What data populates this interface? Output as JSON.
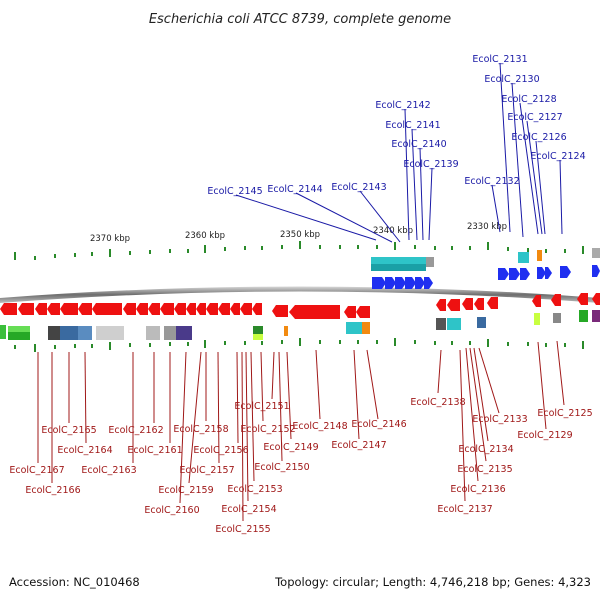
{
  "title": "Escherichia coli ATCC 8739, complete genome",
  "footer": {
    "accession": "Accession: NC_010468",
    "topology": "Topology: circular; Length: 4,746,218 bp; Genes: 4,323"
  },
  "ticks": [
    "2370 kbp",
    "2360 kbp",
    "2350 kbp",
    "2340 kbp",
    "2330 kbp"
  ],
  "labels_top": [
    "EcolC_2131",
    "EcolC_2130",
    "EcolC_2128",
    "EcolC_2127",
    "EcolC_2126",
    "EcolC_2124",
    "EcolC_2132",
    "EcolC_2142",
    "EcolC_2141",
    "EcolC_2140",
    "EcolC_2139",
    "EcolC_2143",
    "EcolC_2144",
    "EcolC_2145"
  ],
  "labels_bottom": [
    "EcolC_2138",
    "EcolC_2133",
    "EcolC_2134",
    "EcolC_2135",
    "EcolC_2136",
    "EcolC_2137",
    "EcolC_2125",
    "EcolC_2129",
    "EcolC_2146",
    "EcolC_2147",
    "EcolC_2148",
    "EcolC_2149",
    "EcolC_2150",
    "EcolC_2151",
    "EcolC_2152",
    "EcolC_2153",
    "EcolC_2154",
    "EcolC_2155",
    "EcolC_2156",
    "EcolC_2157",
    "EcolC_2158",
    "EcolC_2159",
    "EcolC_2160",
    "EcolC_2161",
    "EcolC_2162",
    "EcolC_2163",
    "EcolC_2164",
    "EcolC_2165",
    "EcolC_2166",
    "EcolC_2167"
  ],
  "colors": {
    "forward": "#1f2ff0",
    "reverse": "#ee1111",
    "top_label": "#1a1aa6",
    "bottom_label": "#a01818",
    "backbone": "#888888"
  }
}
